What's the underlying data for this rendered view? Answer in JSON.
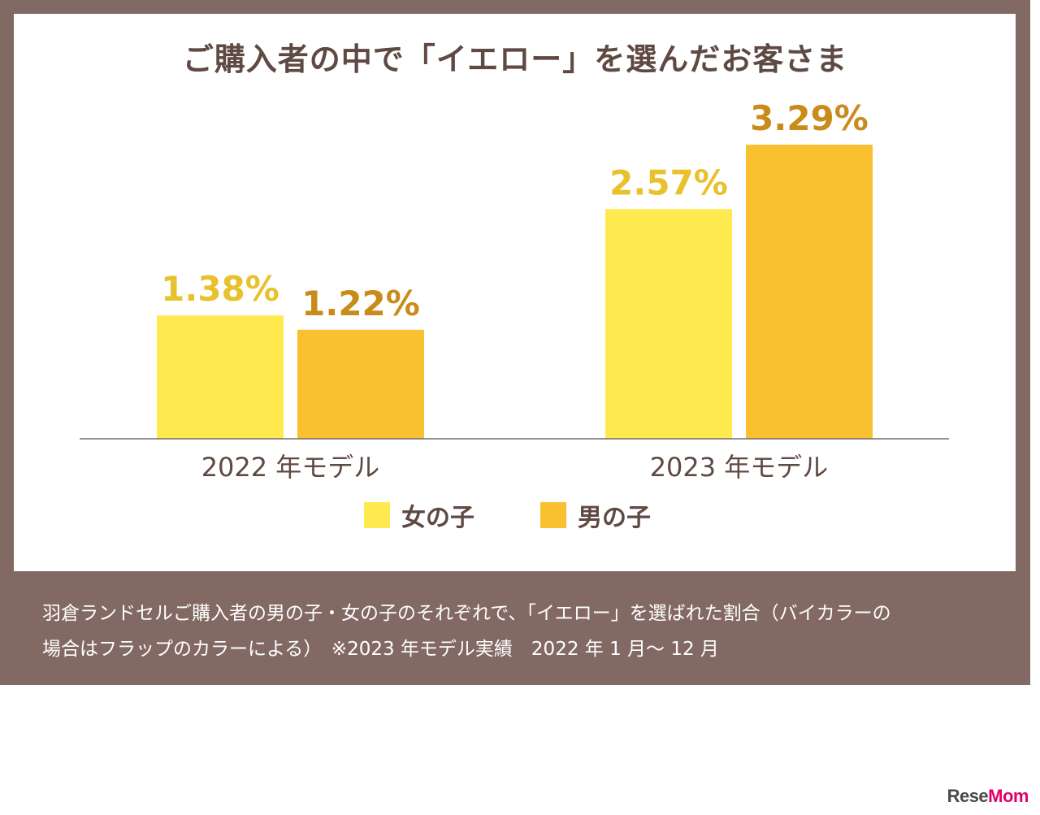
{
  "colors": {
    "frame": "#836963",
    "girl": "#fee94f",
    "boy": "#f9c02f",
    "girl_label": "#e8c22c",
    "boy_label": "#c98c1b",
    "axis": "#6e6e6e"
  },
  "chart_data": {
    "type": "bar",
    "title": "ご購入者の中で「イエロー」を選んだお客さま",
    "categories": [
      "2022 年モデル",
      "2023 年モデル"
    ],
    "series": [
      {
        "name": "女の子",
        "values": [
          1.38,
          2.57
        ],
        "labels": [
          "1.38%",
          "2.57%"
        ]
      },
      {
        "name": "男の子",
        "values": [
          1.22,
          3.29
        ],
        "labels": [
          "1.22%",
          "3.29%"
        ]
      }
    ],
    "xlabel": "",
    "ylabel": "",
    "ylim": [
      0,
      4.0
    ],
    "unit": "%",
    "grid": false,
    "legend_position": "bottom"
  },
  "caption": {
    "line1": "羽倉ランドセルご購入者の男の子・女の子のそれぞれで、「イエロー」を選ばれた割合（バイカラーの",
    "line2": "場合はフラップのカラーによる）　※2023 年モデル実績　2022 年 1 月～ 12 月"
  },
  "watermark": {
    "text_a": "Rese",
    "text_b": "Mom"
  }
}
